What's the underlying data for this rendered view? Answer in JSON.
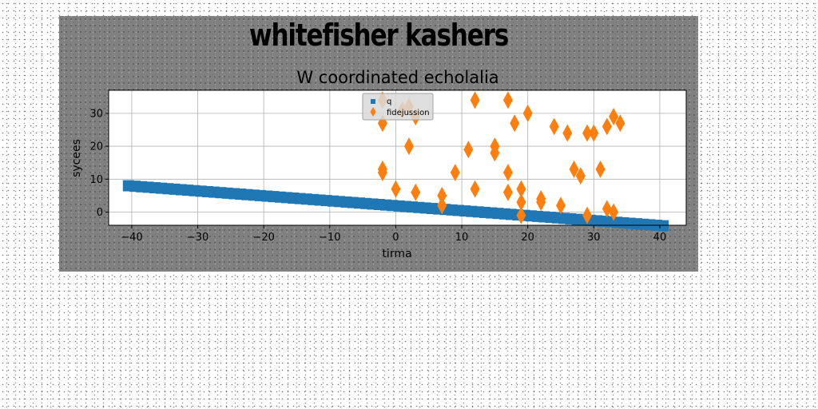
{
  "figure": {
    "suptitle": "whitefisher kashers",
    "background": "#808080"
  },
  "chart_data": {
    "type": "scatter",
    "title": "W coordinated echolalia",
    "xlabel": "tirma",
    "ylabel": "sycees",
    "xlim": [
      -43.5,
      44
    ],
    "ylim": [
      -4,
      37
    ],
    "xticks": [
      -40,
      -30,
      -20,
      -10,
      0,
      10,
      20,
      30,
      40
    ],
    "yticks": [
      0,
      10,
      20,
      30
    ],
    "grid": true,
    "legend_placement": "upper center",
    "series": [
      {
        "name": "q",
        "marker": "square",
        "color": "#1f77b4",
        "x": [
          -40.5,
          -39.5,
          -38.5,
          -37.5,
          -36.5,
          -35.5,
          -34.5,
          -33.5,
          -32.5,
          -31.5,
          -30.5,
          -29.5,
          -28.5,
          -27.5,
          -26.5,
          -25.5,
          -24.5,
          -23.5,
          -22.5,
          -21.5,
          -20.5,
          -19.5,
          -18.5,
          -17.5,
          -16.5,
          -15.5,
          -14.5,
          -13.5,
          -12.5,
          -11.5,
          -10.5,
          -9.5,
          -8.5,
          -7.5,
          -6.5,
          -5.5,
          -4.5,
          -3.5,
          -2.5,
          -1.5,
          -0.5,
          0.5,
          1.5,
          2.5,
          3.5,
          4.5,
          5.5,
          6.5,
          7.5,
          8.5,
          9.5,
          10.5,
          11.5,
          12.5,
          13.5,
          14.5,
          15.5,
          16.5,
          17.5,
          18.5,
          19.5,
          20.5,
          21.5,
          22.5,
          23.5,
          24.5,
          25.5,
          26.5,
          27.5,
          28.5,
          29.5,
          30.5,
          31.5,
          32.5,
          33.5,
          34.5,
          35.5,
          36.5,
          37.5,
          38.5,
          39.5,
          40.5
        ],
        "y": [
          8.0,
          7.85,
          7.7,
          7.55,
          7.4,
          7.25,
          7.1,
          6.95,
          6.8,
          6.65,
          6.5,
          6.35,
          6.2,
          6.05,
          5.9,
          5.75,
          5.6,
          5.45,
          5.3,
          5.15,
          5.0,
          4.85,
          4.7,
          4.55,
          4.4,
          4.25,
          4.1,
          3.95,
          3.8,
          3.65,
          3.5,
          3.35,
          3.2,
          3.05,
          2.9,
          2.75,
          2.6,
          2.45,
          2.3,
          2.15,
          2.0,
          1.85,
          1.7,
          1.55,
          1.4,
          1.25,
          1.1,
          0.95,
          0.8,
          0.65,
          0.5,
          0.35,
          0.2,
          0.05,
          -0.1,
          -0.25,
          -0.4,
          -0.55,
          -0.7,
          -0.85,
          -1.0,
          -1.15,
          -1.3,
          -1.45,
          -1.6,
          -1.75,
          -1.9,
          -2.05,
          -2.2,
          -2.35,
          -2.5,
          -2.65,
          -2.8,
          -2.95,
          -3.1,
          -3.25,
          -3.4,
          -3.55,
          -3.7,
          -3.85,
          -4.0,
          -4.15
        ]
      },
      {
        "name": "fidejussion",
        "marker": "diamond",
        "color": "#ff7f0e",
        "x": [
          -2,
          -2,
          -2,
          -2,
          0,
          1,
          2,
          2,
          3,
          3,
          7,
          7,
          9,
          11,
          12,
          12,
          15,
          15,
          17,
          17,
          17,
          18,
          19,
          19,
          19,
          20,
          22,
          22,
          24,
          25,
          26,
          27,
          28,
          29,
          29,
          30,
          31,
          32,
          32,
          33,
          33,
          34
        ],
        "y": [
          34,
          27,
          13,
          12,
          7,
          31,
          32,
          20,
          29,
          6,
          5,
          2,
          12,
          19,
          34,
          7,
          20,
          18,
          34,
          12,
          6,
          27,
          7,
          3,
          -1,
          30,
          4,
          3,
          26,
          2,
          24,
          13,
          11,
          24,
          -1,
          24,
          13,
          26,
          1,
          29,
          0,
          27
        ]
      }
    ]
  }
}
